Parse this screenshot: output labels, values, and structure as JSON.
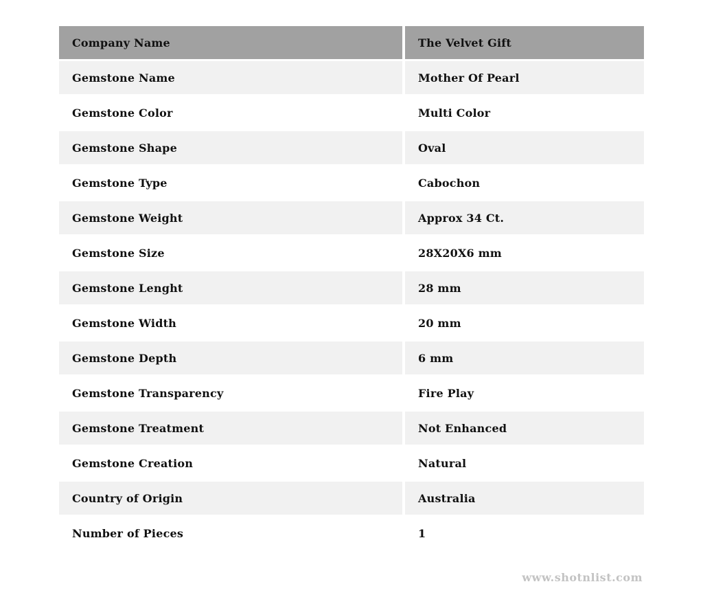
{
  "table": {
    "header": {
      "label": "Company Name",
      "value": "The Velvet Gift"
    },
    "rows": [
      {
        "label": "Gemstone Name",
        "value": "Mother Of Pearl"
      },
      {
        "label": "Gemstone Color",
        "value": "Multi Color"
      },
      {
        "label": "Gemstone Shape",
        "value": "Oval"
      },
      {
        "label": "Gemstone Type",
        "value": "Cabochon"
      },
      {
        "label": "Gemstone Weight",
        "value": "Approx 34 Ct."
      },
      {
        "label": "Gemstone Size",
        "value": "28X20X6 mm"
      },
      {
        "label": "Gemstone Lenght",
        "value": "28 mm"
      },
      {
        "label": "Gemstone Width",
        "value": "20 mm"
      },
      {
        "label": "Gemstone Depth",
        "value": "6 mm"
      },
      {
        "label": "Gemstone Transparency",
        "value": "Fire Play"
      },
      {
        "label": "Gemstone Treatment",
        "value": "Not Enhanced"
      },
      {
        "label": "Gemstone Creation",
        "value": "Natural"
      },
      {
        "label": "Country of Origin",
        "value": "Australia"
      },
      {
        "label": "Number of Pieces",
        "value": "1"
      }
    ]
  },
  "watermark": "www.shotnlist.com",
  "colors": {
    "header_bg": "#a1a1a1",
    "stripe_bg": "#f1f1f1",
    "text": "#111111",
    "watermark": "#c3c3c3",
    "page_bg": "#ffffff"
  }
}
